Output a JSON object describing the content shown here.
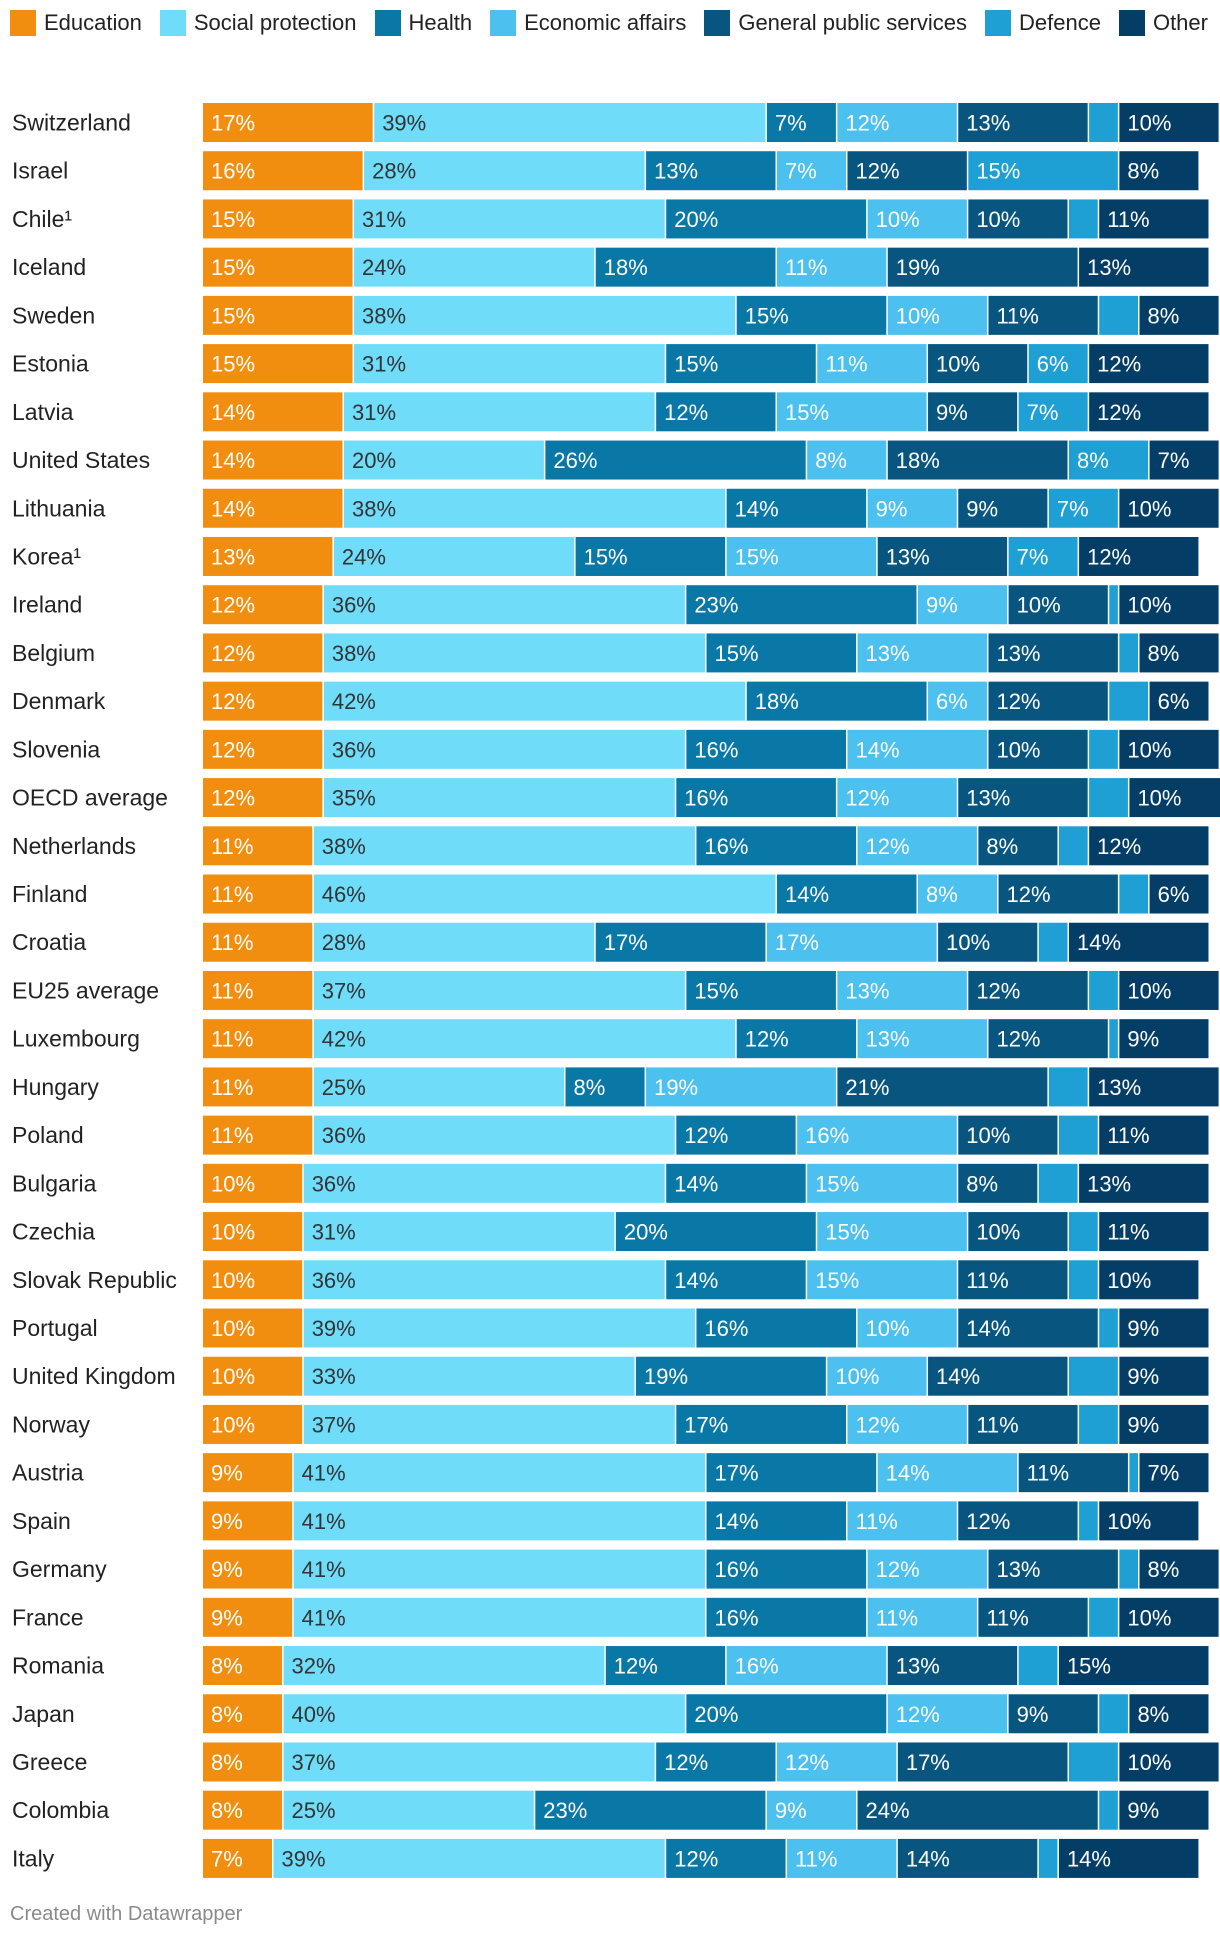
{
  "legend": [
    {
      "name": "Education",
      "color": "#f28e0f"
    },
    {
      "name": "Social protection",
      "color": "#6fdcfa"
    },
    {
      "name": "Health",
      "color": "#0a78a6"
    },
    {
      "name": "Economic affairs",
      "color": "#4cc0ee"
    },
    {
      "name": "General public services",
      "color": "#085680"
    },
    {
      "name": "Defence",
      "color": "#1ea0d4"
    },
    {
      "name": "Other",
      "color": "#043d66"
    }
  ],
  "credit": "Created with Datawrapper",
  "chart_data": {
    "type": "bar",
    "orientation": "horizontal",
    "stacked": true,
    "unit": "%",
    "categories": [
      "Switzerland",
      "Israel",
      "Chile¹",
      "Iceland",
      "Sweden",
      "Estonia",
      "Latvia",
      "United States",
      "Lithuania",
      "Korea¹",
      "Ireland",
      "Belgium",
      "Denmark",
      "Slovenia",
      "OECD average",
      "Netherlands",
      "Finland",
      "Croatia",
      "EU25 average",
      "Luxembourg",
      "Hungary",
      "Poland",
      "Bulgaria",
      "Czechia",
      "Slovak Republic",
      "Portugal",
      "United Kingdom",
      "Norway",
      "Austria",
      "Spain",
      "Germany",
      "France",
      "Romania",
      "Japan",
      "Greece",
      "Colombia",
      "Italy"
    ],
    "series": [
      {
        "name": "Education",
        "values": [
          17,
          16,
          15,
          15,
          15,
          15,
          14,
          14,
          14,
          13,
          12,
          12,
          12,
          12,
          12,
          11,
          11,
          11,
          11,
          11,
          11,
          11,
          10,
          10,
          10,
          10,
          10,
          10,
          9,
          9,
          9,
          9,
          8,
          8,
          8,
          8,
          7
        ]
      },
      {
        "name": "Social protection",
        "values": [
          39,
          28,
          31,
          24,
          38,
          31,
          31,
          20,
          38,
          24,
          36,
          38,
          42,
          36,
          35,
          38,
          46,
          28,
          37,
          42,
          25,
          36,
          36,
          31,
          36,
          39,
          33,
          37,
          41,
          41,
          41,
          41,
          32,
          40,
          37,
          25,
          39
        ]
      },
      {
        "name": "Health",
        "values": [
          7,
          13,
          20,
          18,
          15,
          15,
          12,
          26,
          14,
          15,
          23,
          15,
          18,
          16,
          16,
          16,
          14,
          17,
          15,
          12,
          8,
          12,
          14,
          20,
          14,
          16,
          19,
          17,
          17,
          14,
          16,
          16,
          12,
          20,
          12,
          23,
          12
        ]
      },
      {
        "name": "Economic affairs",
        "values": [
          12,
          7,
          10,
          11,
          10,
          11,
          15,
          8,
          9,
          15,
          9,
          13,
          6,
          14,
          12,
          12,
          8,
          17,
          13,
          13,
          19,
          16,
          15,
          15,
          15,
          10,
          10,
          12,
          14,
          11,
          12,
          11,
          16,
          12,
          12,
          9,
          11
        ]
      },
      {
        "name": "General public services",
        "values": [
          13,
          12,
          10,
          19,
          11,
          10,
          9,
          18,
          9,
          13,
          10,
          13,
          12,
          10,
          13,
          8,
          12,
          10,
          12,
          12,
          21,
          10,
          8,
          10,
          11,
          14,
          14,
          11,
          11,
          12,
          13,
          11,
          13,
          9,
          17,
          24,
          14
        ]
      },
      {
        "name": "Defence",
        "values": [
          3,
          15,
          3,
          0,
          4,
          6,
          7,
          8,
          7,
          7,
          1,
          2,
          4,
          3,
          4,
          3,
          3,
          3,
          3,
          1,
          4,
          4,
          4,
          3,
          3,
          2,
          5,
          4,
          1,
          2,
          2,
          3,
          4,
          3,
          5,
          2,
          2
        ]
      },
      {
        "name": "Other",
        "values": [
          10,
          8,
          11,
          13,
          8,
          12,
          12,
          7,
          10,
          12,
          10,
          8,
          6,
          10,
          10,
          12,
          6,
          14,
          10,
          9,
          13,
          11,
          13,
          11,
          10,
          9,
          9,
          9,
          7,
          10,
          8,
          10,
          15,
          8,
          10,
          9,
          14
        ]
      }
    ],
    "xlim": [
      0,
      100
    ],
    "label_min_value": 6
  }
}
